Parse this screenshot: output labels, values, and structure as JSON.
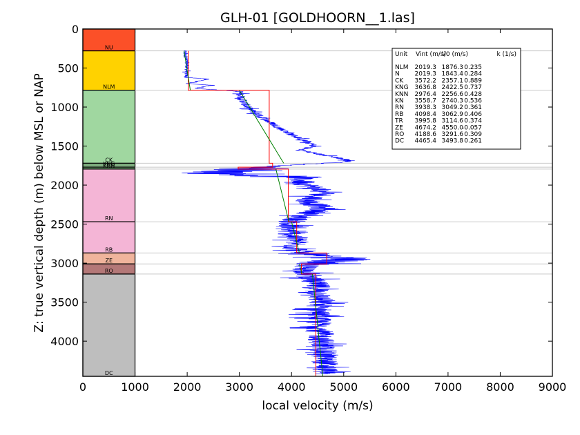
{
  "chart_data": {
    "type": "line",
    "title": "GLH-01 [GOLDHOORN__1.las]",
    "xlabel": "local velocity (m/s)",
    "ylabel": "Z: true vertical depth (m) below MSL or NAP",
    "xlim": [
      0,
      9000
    ],
    "ylim": [
      4450,
      0
    ],
    "y_inverted": true,
    "x_ticks": [
      0,
      1000,
      2000,
      3000,
      4000,
      5000,
      6000,
      7000,
      8000,
      9000
    ],
    "y_ticks": [
      0,
      500,
      1000,
      1500,
      2000,
      2500,
      3000,
      3500,
      4000
    ],
    "grid": "horizontal lines at layer boundaries",
    "colors": {
      "well_log": "#0000ff",
      "interval_velocity": "#ff0000",
      "v0k_model": "#008000",
      "boundary": "#c8c8c8",
      "frame": "#000000"
    },
    "stratigraphic_column": {
      "x_range": [
        0,
        1000
      ],
      "layers": [
        {
          "name": "NU",
          "top": 0,
          "base": 280,
          "color": "#fc5028"
        },
        {
          "name": "NLM",
          "top": 280,
          "base": 785,
          "color": "#ffd200"
        },
        {
          "name": "CK",
          "top": 785,
          "base": 1720,
          "color": "#a0d7a0"
        },
        {
          "name": "KNG",
          "top": 1720,
          "base": 1770,
          "color": "#7fae7f"
        },
        {
          "name": "KNN",
          "top": 1770,
          "base": 1795,
          "color": "#6c9c6c"
        },
        {
          "name": "RN",
          "top": 1795,
          "base": 2470,
          "color": "#f4b5d6"
        },
        {
          "name": "RB",
          "top": 2470,
          "base": 2870,
          "color": "#f4b5d6"
        },
        {
          "name": "ZE",
          "top": 2870,
          "base": 3010,
          "color": "#f0b49c"
        },
        {
          "name": "RO",
          "top": 3010,
          "base": 3140,
          "color": "#b47878"
        },
        {
          "name": "DC",
          "top": 3140,
          "base": 4450,
          "color": "#bebebe"
        }
      ]
    },
    "boundary_depths": [
      280,
      785,
      1720,
      1770,
      1795,
      2470,
      2870,
      3010,
      3140,
      4450
    ],
    "series": [
      {
        "key": "well_log",
        "style": "blue noisy log",
        "points": [
          [
            280,
            1950
          ],
          [
            450,
            2000
          ],
          [
            620,
            1980
          ],
          [
            640,
            2400
          ],
          [
            700,
            2000
          ],
          [
            720,
            2500
          ],
          [
            760,
            2150
          ],
          [
            800,
            3000
          ],
          [
            900,
            3050
          ],
          [
            1000,
            3150
          ],
          [
            1100,
            3350
          ],
          [
            1200,
            3600
          ],
          [
            1300,
            3850
          ],
          [
            1400,
            4150
          ],
          [
            1450,
            4300
          ],
          [
            1500,
            4450
          ],
          [
            1550,
            4150
          ],
          [
            1600,
            4500
          ],
          [
            1650,
            4900
          ],
          [
            1700,
            5150
          ],
          [
            1760,
            3600
          ],
          [
            1800,
            3200
          ],
          [
            1850,
            2500
          ],
          [
            1900,
            4100
          ],
          [
            2000,
            4300
          ],
          [
            2100,
            4650
          ],
          [
            2200,
            4300
          ],
          [
            2300,
            4600
          ],
          [
            2400,
            4200
          ],
          [
            2500,
            3900
          ],
          [
            2600,
            3950
          ],
          [
            2700,
            4100
          ],
          [
            2800,
            4050
          ],
          [
            2870,
            4200
          ],
          [
            2900,
            4300
          ],
          [
            2950,
            5100
          ],
          [
            3000,
            4400
          ],
          [
            3050,
            4250
          ],
          [
            3150,
            4300
          ],
          [
            3300,
            4500
          ],
          [
            3500,
            4550
          ],
          [
            3700,
            4500
          ],
          [
            3900,
            4550
          ],
          [
            4100,
            4600
          ],
          [
            4300,
            4650
          ],
          [
            4420,
            4650
          ]
        ]
      },
      {
        "key": "interval_velocity",
        "style": "red step",
        "segments": [
          {
            "top": 280,
            "base": 785,
            "v": 2019.3
          },
          {
            "top": 785,
            "base": 1720,
            "v": 3572.2
          },
          {
            "top": 1720,
            "base": 1770,
            "v": 3636.8
          },
          {
            "top": 1770,
            "base": 1795,
            "v": 2976.4
          },
          {
            "top": 1795,
            "base": 2470,
            "v": 3938.3
          },
          {
            "top": 2470,
            "base": 2870,
            "v": 4098.4
          },
          {
            "top": 2870,
            "base": 3010,
            "v": 4674.2
          },
          {
            "top": 3010,
            "base": 3140,
            "v": 4188.6
          },
          {
            "top": 3140,
            "base": 4450,
            "v": 4465.4
          }
        ]
      },
      {
        "key": "v0k_model",
        "style": "green segments",
        "segments": [
          {
            "top": 280,
            "base": 785,
            "v_top": 1940,
            "v_base": 2060
          },
          {
            "top": 785,
            "base": 1720,
            "v_top": 3000,
            "v_base": 3850
          },
          {
            "top": 1795,
            "base": 2470,
            "v_top": 3700,
            "v_base": 3950
          },
          {
            "top": 2470,
            "base": 2870,
            "v_top": 4000,
            "v_base": 4150
          },
          {
            "top": 3010,
            "base": 3140,
            "v_top": 4150,
            "v_base": 4200
          },
          {
            "top": 3140,
            "base": 4450,
            "v_top": 4400,
            "v_base": 4600
          }
        ]
      }
    ],
    "legend": {
      "placement": "top-right",
      "header": [
        "Unit",
        "Vint (m/s)",
        "V0 (m/s)",
        "k (1/s)"
      ],
      "rows": [
        [
          "NLM",
          "2019.3",
          "1876.3",
          "0.235"
        ],
        [
          "N",
          "2019.3",
          "1843.4",
          "0.284"
        ],
        [
          "CK",
          "3572.2",
          "2357.1",
          "0.889"
        ],
        [
          "KNG",
          "3636.8",
          "2422.5",
          "0.737"
        ],
        [
          "KNN",
          "2976.4",
          "2256.6",
          "0.428"
        ],
        [
          "KN",
          "3558.7",
          "2740.3",
          "0.536"
        ],
        [
          "RN",
          "3938.3",
          "3049.2",
          "0.361"
        ],
        [
          "RB",
          "4098.4",
          "3062.9",
          "0.406"
        ],
        [
          "TR",
          "3995.8",
          "3114.6",
          "0.374"
        ],
        [
          "ZE",
          "4674.2",
          "4550.0",
          "-0.057"
        ],
        [
          "RO",
          "4188.6",
          "3291.6",
          "0.309"
        ],
        [
          "DC",
          "4465.4",
          "3493.8",
          "0.261"
        ]
      ]
    }
  }
}
